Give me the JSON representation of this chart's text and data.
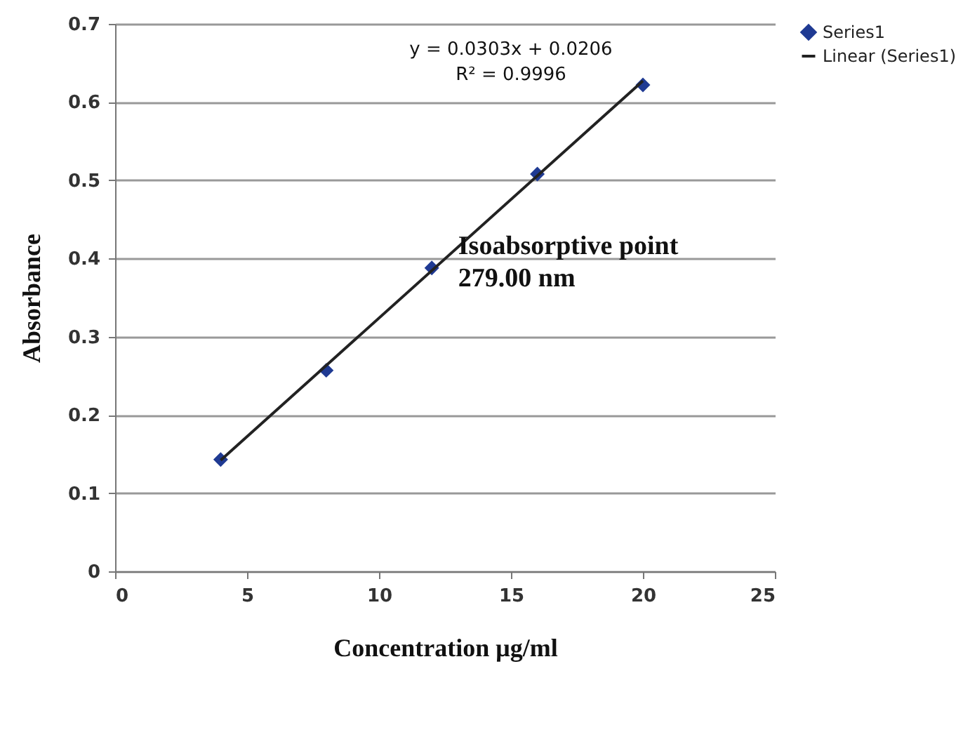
{
  "chart_data": {
    "type": "scatter",
    "xlabel": "Concentration μg/ml",
    "ylabel": "Absorbance",
    "xlim": [
      0,
      25
    ],
    "xticks": [
      0,
      5,
      10,
      15,
      20,
      25
    ],
    "ylim": [
      0,
      0.7
    ],
    "yticks": [
      0,
      0.1,
      0.2,
      0.3,
      0.4,
      0.5,
      0.6,
      0.7
    ],
    "grid": "y",
    "legend": "right",
    "annotations": [
      "y = 0.0303x + 0.0206",
      "R² = 0.9996",
      "Isoabsorptive point\n279.00 nm"
    ],
    "x": [
      4,
      8,
      12,
      16,
      20
    ],
    "series": [
      {
        "name": "Series1",
        "color": "#1f3a93",
        "marker": "diamond",
        "values": [
          0.143,
          0.257,
          0.388,
          0.508,
          0.622
        ]
      },
      {
        "name": "Linear (Series1)",
        "type": "line",
        "color": "#222222",
        "x": [
          4,
          20
        ],
        "values": [
          0.142,
          0.627
        ]
      }
    ]
  }
}
